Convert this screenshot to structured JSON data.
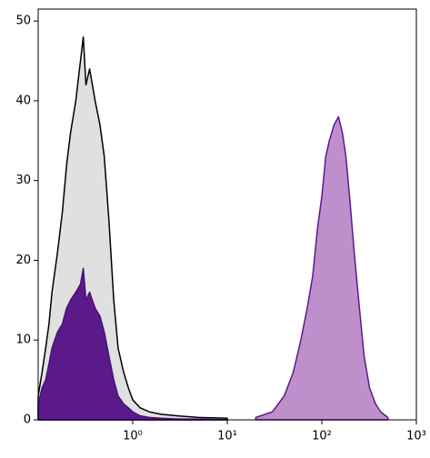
{
  "chart_data": {
    "type": "area",
    "xscale": "log",
    "xlim": [
      0.1,
      1000
    ],
    "xticks": [
      {
        "value": 1,
        "label": "10⁰"
      },
      {
        "value": 10,
        "label": "10¹"
      },
      {
        "value": 100,
        "label": "10²"
      },
      {
        "value": 1000,
        "label": "10³"
      }
    ],
    "ylim": [
      0,
      51.5
    ],
    "yticks": [
      0,
      10,
      20,
      30,
      40,
      50
    ],
    "series": [
      {
        "color": "#000000",
        "fill": "#e0e0e0",
        "x": [
          0.1,
          0.11,
          0.12,
          0.13,
          0.14,
          0.16,
          0.18,
          0.2,
          0.22,
          0.25,
          0.28,
          0.3,
          0.32,
          0.35,
          0.4,
          0.45,
          0.5,
          0.56,
          0.63,
          0.7,
          0.8,
          0.9,
          1.0,
          1.2,
          1.5,
          2,
          3,
          5,
          10
        ],
        "values": [
          3,
          6,
          9,
          12,
          16,
          21,
          26,
          32,
          36,
          40,
          45,
          48,
          42,
          44,
          40,
          37,
          33,
          25,
          15,
          9,
          6,
          4,
          2.5,
          1.5,
          1,
          0.7,
          0.5,
          0.3,
          0.2
        ]
      },
      {
        "color": "#4b0f7d",
        "fill": "#5a1a8a",
        "x": [
          0.1,
          0.11,
          0.12,
          0.13,
          0.14,
          0.16,
          0.18,
          0.2,
          0.22,
          0.25,
          0.28,
          0.3,
          0.32,
          0.35,
          0.4,
          0.45,
          0.5,
          0.56,
          0.63,
          0.7,
          0.8,
          0.9,
          1.0,
          1.2,
          1.5,
          2,
          3,
          5,
          10
        ],
        "values": [
          2,
          4,
          5,
          7,
          9,
          11,
          12,
          14,
          15,
          16,
          17,
          19,
          15,
          16,
          14,
          13,
          11,
          8,
          5,
          3,
          2,
          1.5,
          1,
          0.5,
          0.3,
          0.2,
          0.1,
          0.1,
          0
        ]
      },
      {
        "color": "#5c1a8c",
        "fill": "#bf8fcc",
        "x": [
          20,
          30,
          40,
          50,
          60,
          70,
          80,
          90,
          100,
          110,
          120,
          135,
          150,
          165,
          180,
          200,
          220,
          250,
          280,
          320,
          370,
          420,
          500
        ],
        "values": [
          0.3,
          1,
          3,
          6,
          10,
          14,
          18,
          24,
          28,
          33,
          35,
          37,
          38,
          36,
          33,
          27,
          21,
          14,
          8,
          4,
          2,
          1,
          0.3
        ]
      }
    ]
  }
}
